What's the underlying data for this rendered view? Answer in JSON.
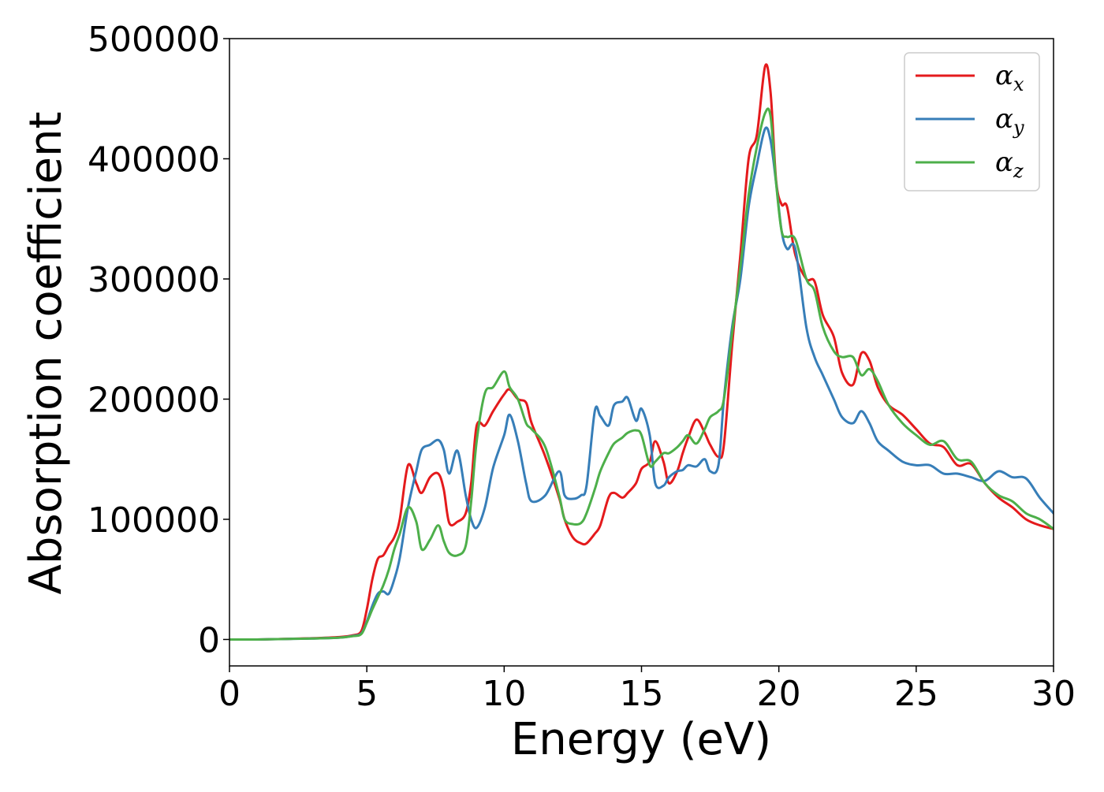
{
  "chart_data": {
    "type": "line",
    "title": "",
    "xlabel": "Energy (eV)",
    "ylabel": "Absorption coefficient",
    "xlim": [
      0,
      30
    ],
    "ylim": [
      -22000,
      500000
    ],
    "xticks": [
      0,
      5,
      10,
      15,
      20,
      25,
      30
    ],
    "xtick_labels": [
      "0",
      "5",
      "10",
      "15",
      "20",
      "25",
      "30"
    ],
    "yticks": [
      0,
      100000,
      200000,
      300000,
      400000,
      500000
    ],
    "ytick_labels": [
      "0",
      "100000",
      "200000",
      "300000",
      "400000",
      "500000"
    ],
    "grid": false,
    "legend_position": "top-right",
    "series": [
      {
        "name": "αx",
        "symbol": "α",
        "subscript": "x",
        "color": "#e41a1c",
        "x": [
          0,
          1,
          2,
          3,
          4,
          4.5,
          4.8,
          5.0,
          5.2,
          5.4,
          5.6,
          5.8,
          6.0,
          6.2,
          6.5,
          6.8,
          7.0,
          7.3,
          7.6,
          7.8,
          8.0,
          8.3,
          8.6,
          8.8,
          9.0,
          9.3,
          9.6,
          10.0,
          10.2,
          10.5,
          10.8,
          11.0,
          11.5,
          12.0,
          12.2,
          12.5,
          12.8,
          13.0,
          13.3,
          13.5,
          13.8,
          14.0,
          14.3,
          14.5,
          14.8,
          15.0,
          15.3,
          15.5,
          15.8,
          16.0,
          16.3,
          16.5,
          16.7,
          17.0,
          17.3,
          17.5,
          17.8,
          18.0,
          18.3,
          18.6,
          18.9,
          19.2,
          19.5,
          19.7,
          19.9,
          20.1,
          20.3,
          20.6,
          21.0,
          21.3,
          21.6,
          22.0,
          22.3,
          22.7,
          23.0,
          23.3,
          23.6,
          24.0,
          24.5,
          25.0,
          25.5,
          26.0,
          26.5,
          27.0,
          27.5,
          28.0,
          28.5,
          29.0,
          29.5,
          30.0
        ],
        "values": [
          0,
          0,
          500,
          1000,
          2000,
          3500,
          7000,
          25000,
          50000,
          67000,
          70000,
          78000,
          85000,
          100000,
          145000,
          130000,
          122000,
          135000,
          138000,
          125000,
          97000,
          98000,
          105000,
          130000,
          178000,
          178000,
          190000,
          204000,
          208000,
          200000,
          197000,
          180000,
          152000,
          118000,
          100000,
          85000,
          80000,
          80000,
          88000,
          95000,
          118000,
          122000,
          118000,
          122000,
          130000,
          142000,
          148000,
          165000,
          148000,
          130000,
          140000,
          155000,
          168000,
          183000,
          172000,
          162000,
          152000,
          162000,
          245000,
          320000,
          400000,
          420000,
          477000,
          455000,
          382000,
          362000,
          360000,
          320000,
          300000,
          298000,
          270000,
          252000,
          222000,
          212000,
          238000,
          232000,
          210000,
          195000,
          187000,
          175000,
          163000,
          160000,
          145000,
          146000,
          130000,
          118000,
          110000,
          100000,
          95000,
          92000
        ]
      },
      {
        "name": "αy",
        "symbol": "α",
        "subscript": "y",
        "color": "#377eb8",
        "x": [
          0,
          1,
          2,
          3,
          4,
          4.5,
          4.8,
          5.0,
          5.2,
          5.4,
          5.6,
          5.8,
          6.0,
          6.2,
          6.5,
          6.8,
          7.0,
          7.3,
          7.6,
          7.8,
          8.0,
          8.3,
          8.6,
          8.8,
          9.0,
          9.3,
          9.6,
          10.0,
          10.2,
          10.5,
          10.8,
          11.0,
          11.5,
          12.0,
          12.2,
          12.5,
          12.8,
          13.0,
          13.3,
          13.5,
          13.8,
          14.0,
          14.3,
          14.5,
          14.8,
          15.0,
          15.3,
          15.5,
          15.8,
          16.0,
          16.3,
          16.5,
          16.7,
          17.0,
          17.3,
          17.5,
          17.8,
          18.0,
          18.3,
          18.6,
          18.9,
          19.2,
          19.5,
          19.7,
          19.9,
          20.1,
          20.3,
          20.6,
          21.0,
          21.3,
          21.6,
          22.0,
          22.3,
          22.7,
          23.0,
          23.3,
          23.6,
          24.0,
          24.5,
          25.0,
          25.5,
          26.0,
          26.5,
          27.0,
          27.5,
          28.0,
          28.5,
          29.0,
          29.5,
          30.0
        ],
        "values": [
          0,
          0,
          400,
          800,
          1500,
          3000,
          5000,
          15000,
          28000,
          38000,
          40000,
          38000,
          50000,
          68000,
          110000,
          140000,
          158000,
          162000,
          166000,
          158000,
          138000,
          157000,
          120000,
          100000,
          93000,
          110000,
          143000,
          170000,
          187000,
          165000,
          130000,
          115000,
          120000,
          140000,
          120000,
          117000,
          120000,
          128000,
          190000,
          186000,
          178000,
          195000,
          198000,
          201000,
          182000,
          192000,
          170000,
          130000,
          128000,
          135000,
          140000,
          141000,
          145000,
          144000,
          150000,
          140000,
          145000,
          200000,
          260000,
          300000,
          360000,
          395000,
          425000,
          415000,
          380000,
          340000,
          325000,
          325000,
          260000,
          235000,
          220000,
          200000,
          185000,
          180000,
          190000,
          180000,
          165000,
          157000,
          148000,
          145000,
          145000,
          138000,
          138000,
          135000,
          132000,
          140000,
          135000,
          134000,
          118000,
          105000
        ]
      },
      {
        "name": "αz",
        "symbol": "α",
        "subscript": "z",
        "color": "#4daf4a",
        "x": [
          0,
          1,
          2,
          3,
          4,
          4.5,
          4.8,
          5.0,
          5.2,
          5.4,
          5.6,
          5.8,
          6.0,
          6.2,
          6.5,
          6.8,
          7.0,
          7.3,
          7.6,
          7.8,
          8.0,
          8.3,
          8.6,
          8.8,
          9.0,
          9.3,
          9.6,
          10.0,
          10.2,
          10.5,
          10.8,
          11.0,
          11.5,
          12.0,
          12.2,
          12.5,
          12.8,
          13.0,
          13.3,
          13.5,
          13.8,
          14.0,
          14.3,
          14.5,
          14.8,
          15.0,
          15.3,
          15.5,
          15.8,
          16.0,
          16.3,
          16.5,
          16.7,
          17.0,
          17.3,
          17.5,
          17.8,
          18.0,
          18.3,
          18.6,
          18.9,
          19.2,
          19.5,
          19.7,
          19.9,
          20.1,
          20.3,
          20.6,
          21.0,
          21.3,
          21.6,
          22.0,
          22.3,
          22.7,
          23.0,
          23.3,
          23.6,
          24.0,
          24.5,
          25.0,
          25.5,
          26.0,
          26.5,
          27.0,
          27.5,
          28.0,
          28.5,
          29.0,
          29.5,
          30.0
        ],
        "values": [
          0,
          0,
          400,
          800,
          1500,
          2800,
          4500,
          14000,
          25000,
          35000,
          45000,
          58000,
          75000,
          88000,
          110000,
          98000,
          75000,
          83000,
          95000,
          82000,
          72000,
          70000,
          78000,
          115000,
          165000,
          205000,
          210000,
          223000,
          210000,
          200000,
          180000,
          175000,
          160000,
          120000,
          100000,
          96000,
          97000,
          105000,
          125000,
          140000,
          155000,
          163000,
          168000,
          172000,
          174000,
          170000,
          145000,
          148000,
          155000,
          155000,
          160000,
          165000,
          170000,
          163000,
          175000,
          185000,
          190000,
          200000,
          255000,
          310000,
          370000,
          410000,
          438000,
          435000,
          380000,
          340000,
          335000,
          333000,
          300000,
          290000,
          260000,
          240000,
          235000,
          235000,
          220000,
          225000,
          215000,
          195000,
          180000,
          170000,
          162000,
          165000,
          150000,
          148000,
          130000,
          120000,
          115000,
          105000,
          100000,
          92000
        ]
      }
    ]
  }
}
